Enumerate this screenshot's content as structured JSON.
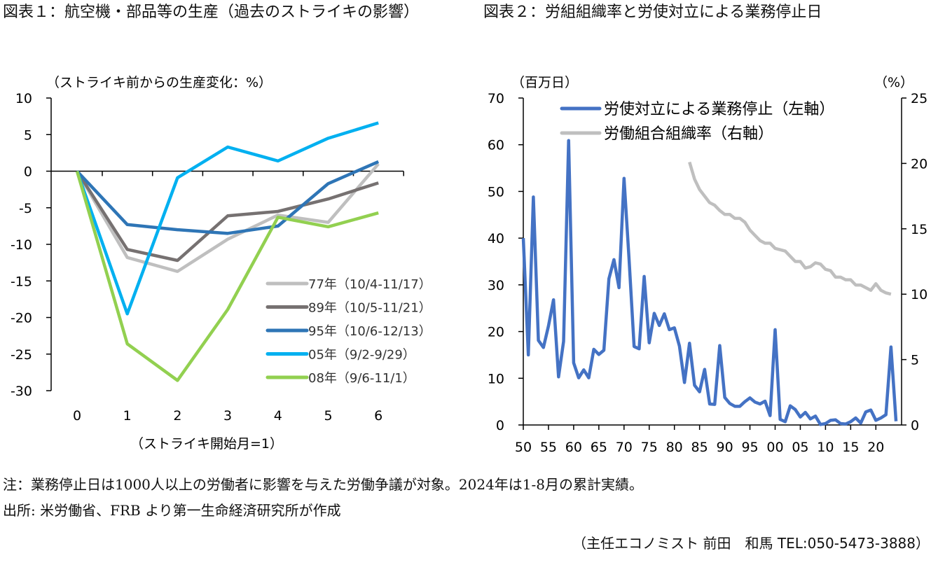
{
  "titles": {
    "left": "図表１：航空機・部品等の生産（過去のストライキの影響）",
    "right": "図表２：労組組織率と労使対立による業務停止日"
  },
  "notes": {
    "note": "注：業務停止日は1000人以上の労働者に影響を与えた労働争議が対象。2024年は1-8月の累計実績。",
    "source": "出所: 米労働省、FRB より第一生命経済研究所が作成",
    "credit": "（主任エコノミスト 前田　和馬 TEL:050-5473-3888）"
  },
  "chart_data": [
    {
      "type": "line",
      "ylabel": "（ストライキ前からの生産変化：%）",
      "xlabel": "（ストライキ開始月=1）",
      "x": [
        0,
        1,
        2,
        3,
        4,
        5,
        6
      ],
      "ylim": [
        -30,
        10
      ],
      "yticks": [
        10,
        5,
        0,
        -5,
        -10,
        -15,
        -20,
        -25,
        -30
      ],
      "legend": "bottom-right",
      "series": [
        {
          "name": "77年（10/4-11/17）",
          "color": "#bfbfbf",
          "values": [
            0,
            -11.8,
            -13.7,
            -9.3,
            -6.0,
            -7.0,
            1.0
          ]
        },
        {
          "name": "89年（10/5-11/21）",
          "color": "#767171",
          "values": [
            0,
            -10.7,
            -12.2,
            -6.1,
            -5.5,
            -3.8,
            -1.6
          ]
        },
        {
          "name": "95年（10/6-12/13）",
          "color": "#2e75b6",
          "values": [
            0,
            -7.3,
            -8.0,
            -8.5,
            -7.5,
            -1.7,
            1.3
          ]
        },
        {
          "name": "05年（9/2-9/29）",
          "color": "#00b0f0",
          "values": [
            0,
            -19.5,
            -0.9,
            3.3,
            1.4,
            4.5,
            6.6
          ]
        },
        {
          "name": "08年（9/6-11/1）",
          "color": "#92d050",
          "values": [
            0,
            -23.6,
            -28.6,
            -18.9,
            -6.3,
            -7.6,
            -5.7
          ]
        }
      ]
    },
    {
      "type": "line",
      "ylabel_left": "（百万日）",
      "ylabel_right": "（%）",
      "ylim_left": [
        0,
        70
      ],
      "ylim_right": [
        0,
        25
      ],
      "yticks_left": [
        70,
        60,
        50,
        40,
        30,
        20,
        10,
        0
      ],
      "yticks_right": [
        25,
        20,
        15,
        10,
        5,
        0
      ],
      "xticks": [
        "50",
        "55",
        "60",
        "65",
        "70",
        "75",
        "80",
        "85",
        "90",
        "95",
        "00",
        "05",
        "10",
        "15",
        "20"
      ],
      "xrange": [
        1950,
        2024
      ],
      "legend": "top",
      "series": [
        {
          "name": "労使対立による業務停止（左軸）",
          "axis": "left",
          "color": "#4472c4",
          "start": 1950,
          "values": [
            40,
            15.0,
            48.8,
            18.1,
            16.6,
            21.2,
            26.8,
            10.3,
            17.9,
            60.9,
            13.3,
            10.1,
            11.8,
            10.1,
            16.2,
            15.1,
            16.0,
            31.3,
            35.4,
            29.4,
            52.8,
            35.5,
            16.8,
            16.3,
            31.8,
            17.6,
            23.9,
            21.3,
            23.8,
            20.4,
            20.8,
            16.9,
            9.1,
            17.5,
            8.5,
            7.1,
            11.9,
            4.5,
            4.4,
            17.0,
            5.9,
            4.6,
            4.0,
            4.0,
            5.0,
            5.8,
            4.9,
            4.5,
            5.1,
            2.0,
            20.4,
            1.2,
            0.7,
            4.1,
            3.3,
            1.7,
            2.7,
            1.3,
            1.9,
            0.1,
            0.3,
            1.0,
            1.1,
            0.3,
            0.2,
            0.7,
            1.5,
            0.4,
            2.8,
            3.2,
            1.0,
            1.5,
            2.2,
            16.7,
            0.8
          ]
        },
        {
          "name": "労働組合組織率（右軸）",
          "axis": "right",
          "color": "#bfbfbf",
          "start": 1983,
          "values": [
            20.1,
            18.8,
            18.0,
            17.5,
            17.0,
            16.8,
            16.4,
            16.1,
            16.1,
            15.8,
            15.8,
            15.5,
            14.9,
            14.5,
            14.1,
            13.9,
            13.9,
            13.5,
            13.4,
            13.3,
            12.9,
            12.5,
            12.5,
            12.0,
            12.1,
            12.4,
            12.3,
            11.9,
            11.8,
            11.3,
            11.3,
            11.1,
            11.1,
            10.7,
            10.7,
            10.5,
            10.3,
            10.8,
            10.3,
            10.1,
            10.0
          ]
        }
      ]
    }
  ]
}
